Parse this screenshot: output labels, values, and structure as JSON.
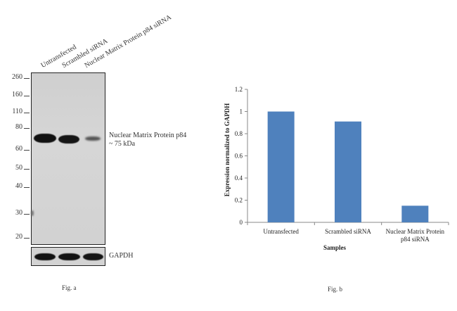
{
  "western_blot": {
    "lanes": [
      "Untransfected",
      "Scrambled siRNA",
      "Nuclear Matrix Protein p84 siRNA"
    ],
    "markers": [
      "260",
      "160",
      "110",
      "80",
      "60",
      "50",
      "40",
      "30",
      "20"
    ],
    "band_label_line1": "Nuclear Matrix Protein p84",
    "band_label_line2": "~ 75 kDa",
    "loading_control_label": "GAPDH",
    "caption": "Fig. a"
  },
  "chart_data": {
    "type": "bar",
    "categories": [
      "Untransfected",
      "Scrambled siRNA",
      "Nuclear Matrix Protein p84 siRNA"
    ],
    "category_display": [
      [
        "Untransfected"
      ],
      [
        "Scrambled siRNA"
      ],
      [
        "Nuclear Matrix Protein",
        "p84 siRNA"
      ]
    ],
    "values": [
      1.0,
      0.91,
      0.15
    ],
    "xlabel": "Samples",
    "ylabel": "Expression  normalized to GAPDH",
    "ylim": [
      0,
      1.2
    ],
    "yticks": [
      "0",
      "0.2",
      "0.4",
      "0.6",
      "0.8",
      "1",
      "1.2"
    ],
    "bar_color": "#4f81bd",
    "grid": false,
    "caption": "Fig. b"
  }
}
